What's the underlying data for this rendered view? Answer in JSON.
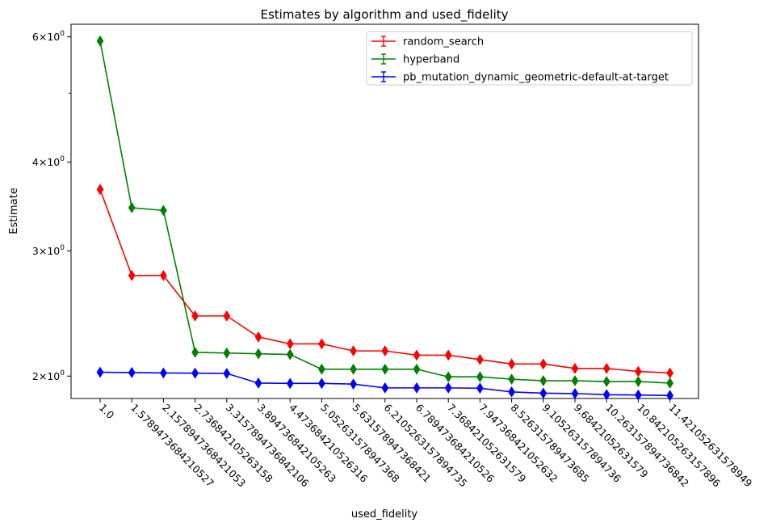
{
  "chart_data": {
    "type": "line",
    "title": "Estimates by algorithm and used_fidelity",
    "xlabel": "used_fidelity",
    "ylabel": "Estimate",
    "yscale": "log",
    "ylim": [
      1.86,
      6.25
    ],
    "grid": false,
    "legend_position": "top-right",
    "categories": [
      "1.0",
      "1.5789473684210527",
      "2.1578947368421053",
      "2.736842105263158",
      "3.3157894736842106",
      "3.894736842105263",
      "4.473684210526316",
      "5.052631578947368",
      "5.631578947368421",
      "6.2105263157894735",
      "6.789473684210526",
      "7.368421052631579",
      "7.947368421052632",
      "8.526315789473685",
      "9.105263157894736",
      "9.68421052631579",
      "10.263157894736842",
      "10.842105263157896",
      "11.421052631578949"
    ],
    "xtick_labels": [
      "1.0",
      "1.5789473684210527",
      "2.1578947368421053",
      "2.736842105263158",
      "3.3157894736842106",
      "3.894736842105263",
      "4.473684210526316",
      "5.052631578947368",
      "5.631578947368421",
      "6.2105263157894735",
      "6.789473684210526",
      "7.368421052631579",
      "7.947368421052632",
      "8.526315789473685",
      "9.105263157894736",
      "9.68421052631579",
      "10.263157894736842",
      "10.842105263157896",
      "11.421052631578949"
    ],
    "yticks": [
      {
        "value": 2,
        "base": "2",
        "exp": "0"
      },
      {
        "value": 3,
        "base": "3",
        "exp": "0"
      },
      {
        "value": 4,
        "base": "4",
        "exp": "0"
      },
      {
        "value": 6,
        "base": "6",
        "exp": "0"
      }
    ],
    "yticks_sep": "×10",
    "minor_yticks": [
      5
    ],
    "series": [
      {
        "name": "random_search",
        "color": "#ff0000",
        "values": [
          3.66,
          2.77,
          2.77,
          2.43,
          2.43,
          2.27,
          2.22,
          2.22,
          2.17,
          2.17,
          2.14,
          2.14,
          2.11,
          2.08,
          2.08,
          2.05,
          2.05,
          2.03,
          2.02
        ]
      },
      {
        "name": "hyperband",
        "color": "#008000",
        "values": [
          5.92,
          3.45,
          3.42,
          2.16,
          2.155,
          2.15,
          2.145,
          2.045,
          2.045,
          2.045,
          2.045,
          1.995,
          1.995,
          1.98,
          1.97,
          1.97,
          1.965,
          1.965,
          1.955
        ]
      },
      {
        "name": "pb_mutation_dynamic_geometric-default-at-target",
        "color": "#0000ff",
        "values": [
          2.025,
          2.023,
          2.02,
          2.019,
          2.017,
          1.955,
          1.953,
          1.953,
          1.949,
          1.925,
          1.925,
          1.925,
          1.923,
          1.9,
          1.892,
          1.89,
          1.883,
          1.881,
          1.878
        ]
      }
    ]
  }
}
